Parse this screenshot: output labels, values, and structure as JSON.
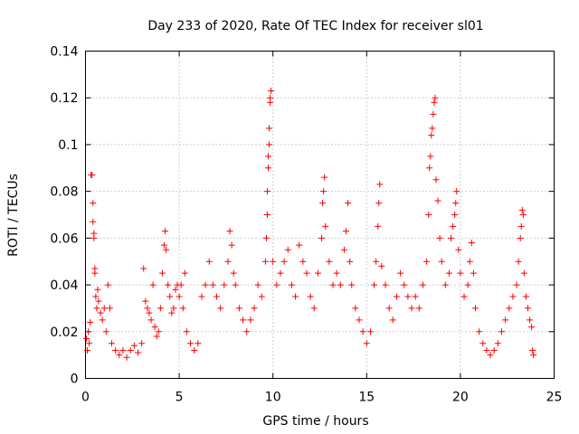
{
  "chart_data": {
    "type": "scatter",
    "title": "Day 233 of 2020, Rate Of TEC Index for receiver sl01",
    "xlabel": "GPS time / hours",
    "ylabel": "ROTI / TECUs",
    "xlim": [
      0,
      25
    ],
    "ylim": [
      0,
      0.14
    ],
    "xticks": [
      0,
      5,
      10,
      15,
      20,
      25
    ],
    "yticks": [
      0,
      0.02,
      0.04,
      0.06,
      0.08,
      0.1,
      0.12,
      0.14
    ],
    "grid": true,
    "marker": "plus",
    "marker_color": "#ff0000",
    "series_color": "#ff0000",
    "series": [
      {
        "points": [
          [
            0.05,
            0.017
          ],
          [
            0.1,
            0.012
          ],
          [
            0.15,
            0.02
          ],
          [
            0.2,
            0.015
          ],
          [
            0.25,
            0.024
          ],
          [
            0.3,
            0.087
          ],
          [
            0.35,
            0.087
          ],
          [
            0.4,
            0.075
          ],
          [
            0.4,
            0.067
          ],
          [
            0.45,
            0.062
          ],
          [
            0.45,
            0.06
          ],
          [
            0.5,
            0.047
          ],
          [
            0.5,
            0.045
          ],
          [
            0.55,
            0.035
          ],
          [
            0.6,
            0.03
          ],
          [
            0.65,
            0.038
          ],
          [
            0.7,
            0.033
          ],
          [
            0.8,
            0.028
          ],
          [
            0.9,
            0.025
          ],
          [
            1.0,
            0.03
          ],
          [
            1.1,
            0.02
          ],
          [
            1.2,
            0.04
          ],
          [
            1.3,
            0.03
          ],
          [
            1.4,
            0.015
          ],
          [
            1.6,
            0.012
          ],
          [
            1.8,
            0.01
          ],
          [
            2.0,
            0.012
          ],
          [
            2.2,
            0.009
          ],
          [
            2.4,
            0.012
          ],
          [
            2.6,
            0.014
          ],
          [
            2.8,
            0.011
          ],
          [
            3.0,
            0.015
          ],
          [
            3.1,
            0.047
          ],
          [
            3.2,
            0.033
          ],
          [
            3.3,
            0.03
          ],
          [
            3.4,
            0.028
          ],
          [
            3.5,
            0.025
          ],
          [
            3.6,
            0.04
          ],
          [
            3.7,
            0.022
          ],
          [
            3.8,
            0.018
          ],
          [
            3.9,
            0.02
          ],
          [
            4.0,
            0.03
          ],
          [
            4.1,
            0.045
          ],
          [
            4.2,
            0.057
          ],
          [
            4.25,
            0.063
          ],
          [
            4.3,
            0.055
          ],
          [
            4.4,
            0.04
          ],
          [
            4.5,
            0.035
          ],
          [
            4.6,
            0.028
          ],
          [
            4.7,
            0.03
          ],
          [
            4.8,
            0.038
          ],
          [
            4.9,
            0.04
          ],
          [
            5.0,
            0.035
          ],
          [
            5.1,
            0.04
          ],
          [
            5.2,
            0.03
          ],
          [
            5.3,
            0.045
          ],
          [
            5.4,
            0.02
          ],
          [
            5.6,
            0.015
          ],
          [
            5.8,
            0.012
          ],
          [
            6.0,
            0.015
          ],
          [
            6.2,
            0.035
          ],
          [
            6.4,
            0.04
          ],
          [
            6.6,
            0.05
          ],
          [
            6.8,
            0.04
          ],
          [
            7.0,
            0.035
          ],
          [
            7.2,
            0.03
          ],
          [
            7.4,
            0.04
          ],
          [
            7.6,
            0.05
          ],
          [
            7.7,
            0.063
          ],
          [
            7.8,
            0.057
          ],
          [
            7.9,
            0.045
          ],
          [
            8.0,
            0.04
          ],
          [
            8.2,
            0.03
          ],
          [
            8.4,
            0.025
          ],
          [
            8.6,
            0.02
          ],
          [
            8.8,
            0.025
          ],
          [
            9.0,
            0.03
          ],
          [
            9.2,
            0.04
          ],
          [
            9.4,
            0.035
          ],
          [
            9.6,
            0.05
          ],
          [
            9.65,
            0.06
          ],
          [
            9.7,
            0.07
          ],
          [
            9.7,
            0.08
          ],
          [
            9.75,
            0.09
          ],
          [
            9.75,
            0.095
          ],
          [
            9.8,
            0.1
          ],
          [
            9.8,
            0.107
          ],
          [
            9.85,
            0.118
          ],
          [
            9.85,
            0.12
          ],
          [
            9.9,
            0.123
          ],
          [
            10.0,
            0.05
          ],
          [
            10.2,
            0.04
          ],
          [
            10.4,
            0.045
          ],
          [
            10.6,
            0.05
          ],
          [
            10.8,
            0.055
          ],
          [
            11.0,
            0.04
          ],
          [
            11.2,
            0.035
          ],
          [
            11.4,
            0.057
          ],
          [
            11.6,
            0.05
          ],
          [
            11.8,
            0.045
          ],
          [
            12.0,
            0.035
          ],
          [
            12.2,
            0.03
          ],
          [
            12.4,
            0.045
          ],
          [
            12.6,
            0.06
          ],
          [
            12.65,
            0.075
          ],
          [
            12.7,
            0.08
          ],
          [
            12.75,
            0.086
          ],
          [
            12.8,
            0.065
          ],
          [
            13.0,
            0.05
          ],
          [
            13.2,
            0.04
          ],
          [
            13.4,
            0.045
          ],
          [
            13.6,
            0.04
          ],
          [
            13.8,
            0.055
          ],
          [
            13.9,
            0.063
          ],
          [
            14.0,
            0.075
          ],
          [
            14.1,
            0.05
          ],
          [
            14.2,
            0.04
          ],
          [
            14.4,
            0.03
          ],
          [
            14.6,
            0.025
          ],
          [
            14.8,
            0.02
          ],
          [
            15.0,
            0.015
          ],
          [
            15.2,
            0.02
          ],
          [
            15.4,
            0.04
          ],
          [
            15.5,
            0.05
          ],
          [
            15.6,
            0.065
          ],
          [
            15.65,
            0.075
          ],
          [
            15.7,
            0.083
          ],
          [
            15.8,
            0.048
          ],
          [
            16.0,
            0.04
          ],
          [
            16.2,
            0.03
          ],
          [
            16.4,
            0.025
          ],
          [
            16.6,
            0.035
          ],
          [
            16.8,
            0.045
          ],
          [
            17.0,
            0.04
          ],
          [
            17.2,
            0.035
          ],
          [
            17.4,
            0.03
          ],
          [
            17.6,
            0.035
          ],
          [
            17.8,
            0.03
          ],
          [
            18.0,
            0.04
          ],
          [
            18.2,
            0.05
          ],
          [
            18.3,
            0.07
          ],
          [
            18.35,
            0.09
          ],
          [
            18.4,
            0.095
          ],
          [
            18.45,
            0.104
          ],
          [
            18.5,
            0.107
          ],
          [
            18.55,
            0.113
          ],
          [
            18.6,
            0.118
          ],
          [
            18.65,
            0.12
          ],
          [
            18.7,
            0.085
          ],
          [
            18.8,
            0.076
          ],
          [
            18.9,
            0.06
          ],
          [
            19.0,
            0.05
          ],
          [
            19.2,
            0.04
          ],
          [
            19.4,
            0.045
          ],
          [
            19.5,
            0.06
          ],
          [
            19.6,
            0.065
          ],
          [
            19.7,
            0.07
          ],
          [
            19.75,
            0.075
          ],
          [
            19.8,
            0.08
          ],
          [
            19.9,
            0.055
          ],
          [
            20.0,
            0.045
          ],
          [
            20.2,
            0.035
          ],
          [
            20.4,
            0.04
          ],
          [
            20.5,
            0.05
          ],
          [
            20.6,
            0.058
          ],
          [
            20.7,
            0.045
          ],
          [
            20.8,
            0.03
          ],
          [
            21.0,
            0.02
          ],
          [
            21.2,
            0.015
          ],
          [
            21.4,
            0.012
          ],
          [
            21.6,
            0.01
          ],
          [
            21.8,
            0.012
          ],
          [
            22.0,
            0.015
          ],
          [
            22.2,
            0.02
          ],
          [
            22.4,
            0.025
          ],
          [
            22.6,
            0.03
          ],
          [
            22.8,
            0.035
          ],
          [
            23.0,
            0.04
          ],
          [
            23.1,
            0.05
          ],
          [
            23.2,
            0.06
          ],
          [
            23.25,
            0.065
          ],
          [
            23.3,
            0.072
          ],
          [
            23.35,
            0.07
          ],
          [
            23.4,
            0.045
          ],
          [
            23.5,
            0.035
          ],
          [
            23.6,
            0.03
          ],
          [
            23.7,
            0.025
          ],
          [
            23.8,
            0.022
          ],
          [
            23.85,
            0.012
          ],
          [
            23.9,
            0.01
          ]
        ]
      }
    ]
  }
}
